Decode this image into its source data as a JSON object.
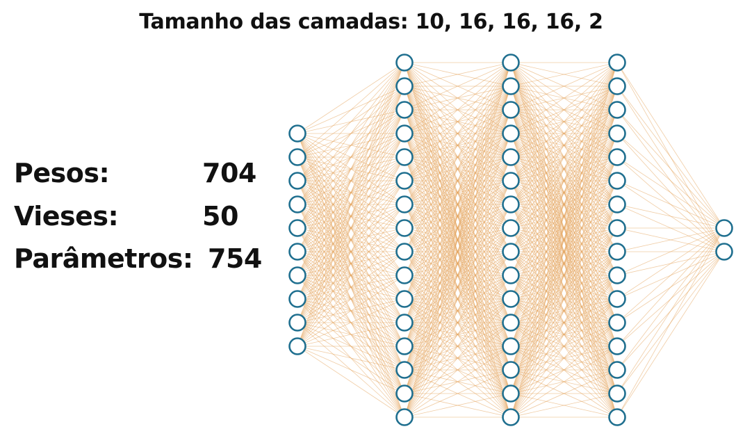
{
  "title": "Tamanho das camadas: 10, 16, 16, 16, 2",
  "stats": {
    "weights_label": "Pesos:",
    "weights_value": "704",
    "biases_label": "Vieses:",
    "biases_value": "50",
    "params_label": "Parâmetros:",
    "params_value": "754"
  },
  "network": {
    "layer_sizes": [
      10,
      16,
      16,
      16,
      2
    ],
    "node_color": "#1f6f8f",
    "edge_color": "#e4a25a"
  }
}
